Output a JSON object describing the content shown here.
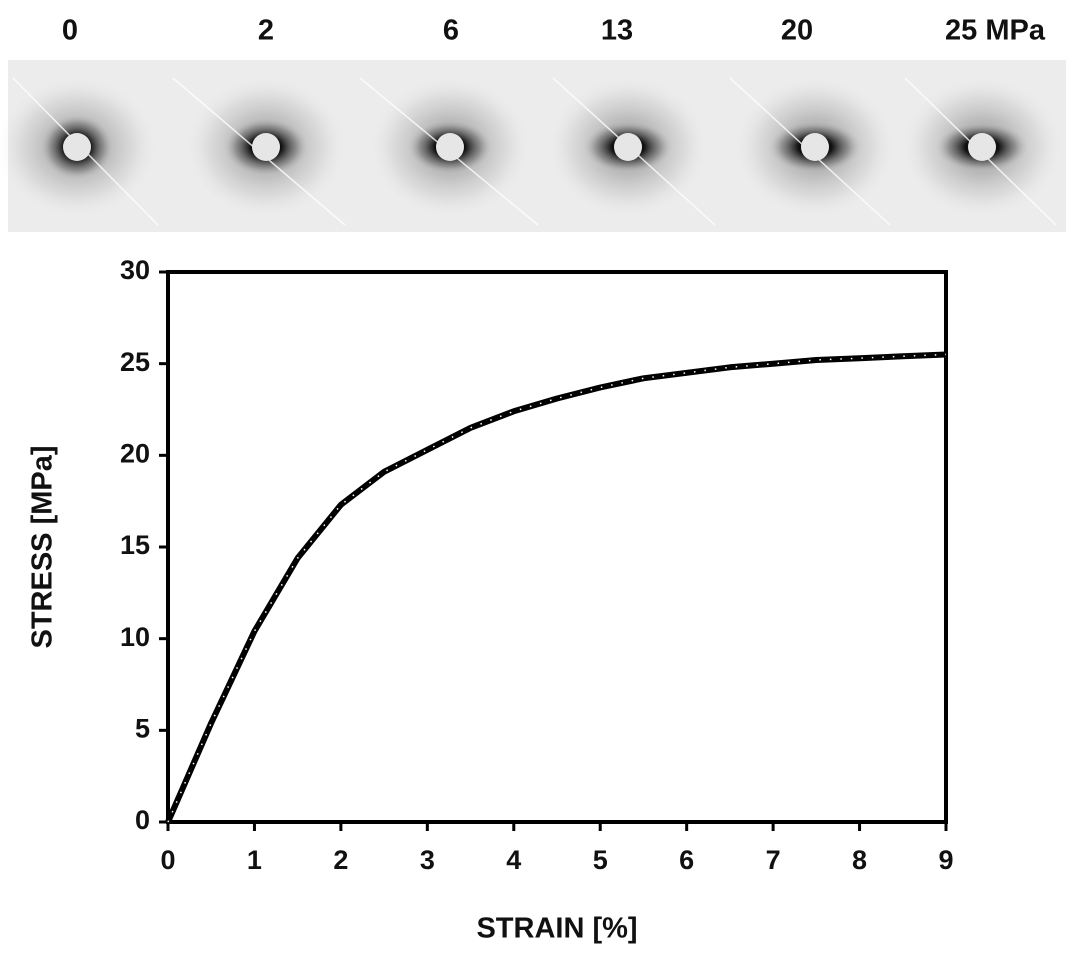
{
  "scattering_patterns": [
    "0",
    "2",
    "6",
    "13",
    "20",
    "25 MPa"
  ],
  "chart_data": {
    "type": "line",
    "x_label": "STRAIN [%]",
    "y_label": "STRESS [MPa]",
    "x": [
      0,
      0.5,
      1,
      1.5,
      2,
      2.5,
      3,
      3.5,
      4,
      4.5,
      5,
      5.5,
      6,
      6.5,
      7,
      7.5,
      8,
      8.5,
      9
    ],
    "values": [
      0,
      5.4,
      10.4,
      14.4,
      17.3,
      19.1,
      20.3,
      21.5,
      22.4,
      23.1,
      23.7,
      24.2,
      24.5,
      24.8,
      25.0,
      25.2,
      25.3,
      25.4,
      25.5
    ],
    "color": "#000000",
    "xlim": [
      0,
      9
    ],
    "xticks": [
      0,
      1,
      2,
      3,
      4,
      5,
      6,
      7,
      8,
      9
    ],
    "ylim": [
      0,
      30
    ],
    "yticks": [
      0,
      5,
      10,
      15,
      20,
      25,
      30
    ],
    "grid": false
  }
}
